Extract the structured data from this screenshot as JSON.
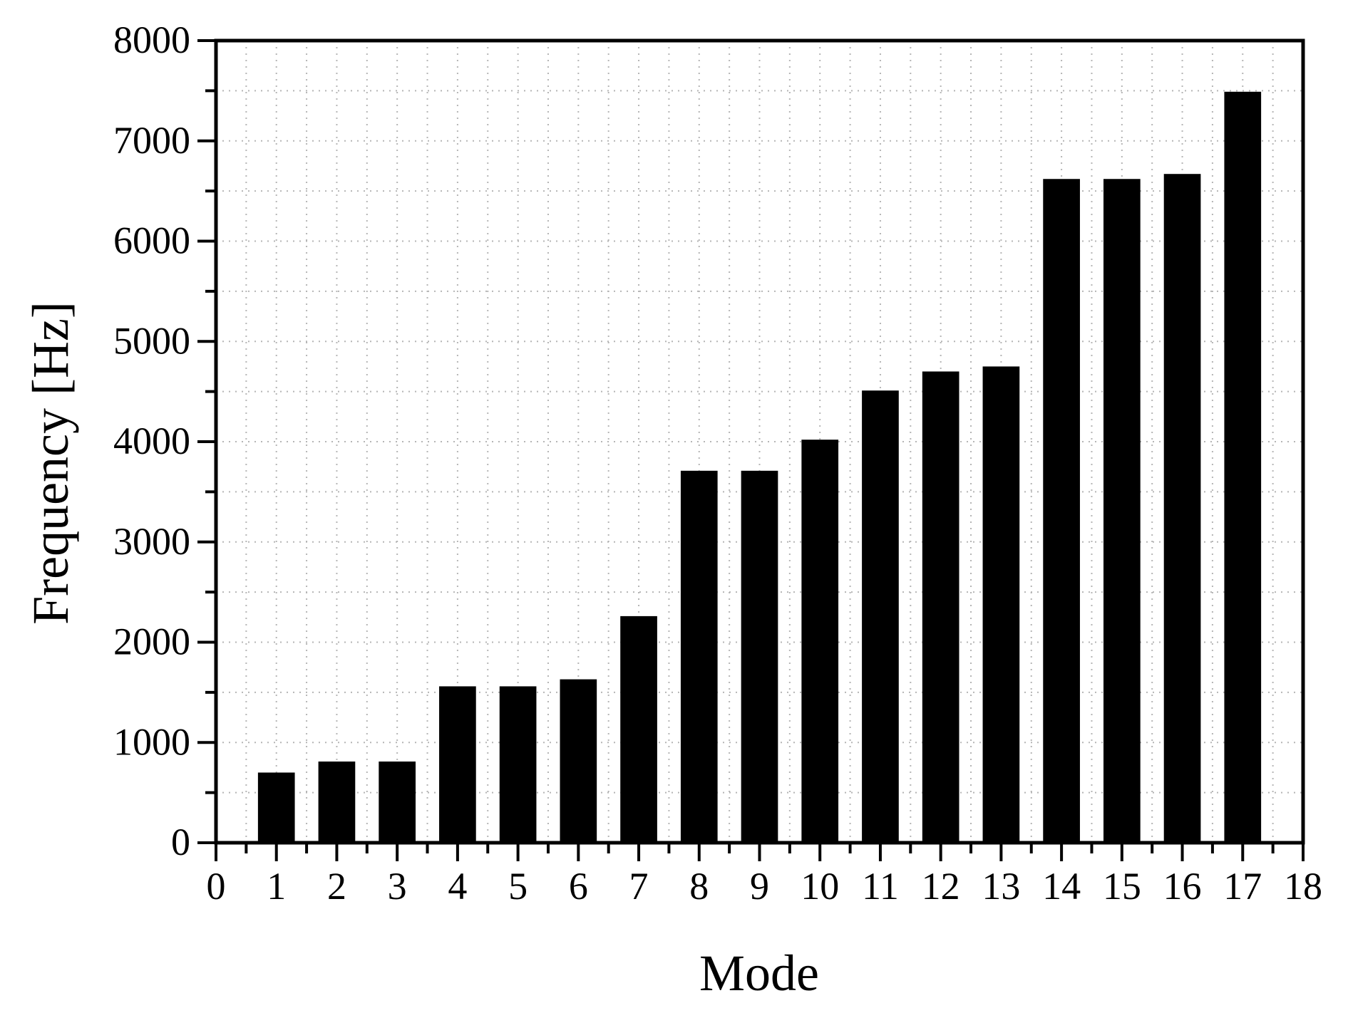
{
  "page": {
    "background": "#ffffff"
  },
  "chart_data": {
    "type": "bar",
    "title": "",
    "xlabel": "Mode",
    "ylabel": "Frequency [Hz]",
    "categories": [
      1,
      2,
      3,
      4,
      5,
      6,
      7,
      8,
      9,
      10,
      11,
      12,
      13,
      14,
      15,
      16,
      17
    ],
    "values": [
      700,
      810,
      810,
      1560,
      1560,
      1630,
      2260,
      3710,
      3710,
      4020,
      4510,
      4700,
      4750,
      6620,
      6620,
      6670,
      7490
    ],
    "xlim": [
      0,
      18
    ],
    "ylim": [
      0,
      8000
    ],
    "x_tick_values": [
      0,
      1,
      2,
      3,
      4,
      5,
      6,
      7,
      8,
      9,
      10,
      11,
      12,
      13,
      14,
      15,
      16,
      17,
      18
    ],
    "x_tick_labels": [
      "0",
      "1",
      "2",
      "3",
      "4",
      "5",
      "6",
      "7",
      "8",
      "9",
      "10",
      "11",
      "12",
      "13",
      "14",
      "15",
      "16",
      "17",
      "18"
    ],
    "x_minor_step": 0.5,
    "y_tick_values": [
      0,
      1000,
      2000,
      3000,
      4000,
      5000,
      6000,
      7000,
      8000
    ],
    "y_tick_labels": [
      "0",
      "1000",
      "2000",
      "3000",
      "4000",
      "5000",
      "6000",
      "7000",
      "8000"
    ],
    "y_minor_step": 500,
    "grid": {
      "show": true,
      "style": "dotted",
      "on_minor": true,
      "color": "#b5b5b5"
    },
    "legend": {
      "show": false
    },
    "colors": {
      "bar": "#000000",
      "axis": "#000000",
      "frame": "#000000",
      "tick_label": "#000000"
    },
    "bar_width_fraction": 0.61
  }
}
